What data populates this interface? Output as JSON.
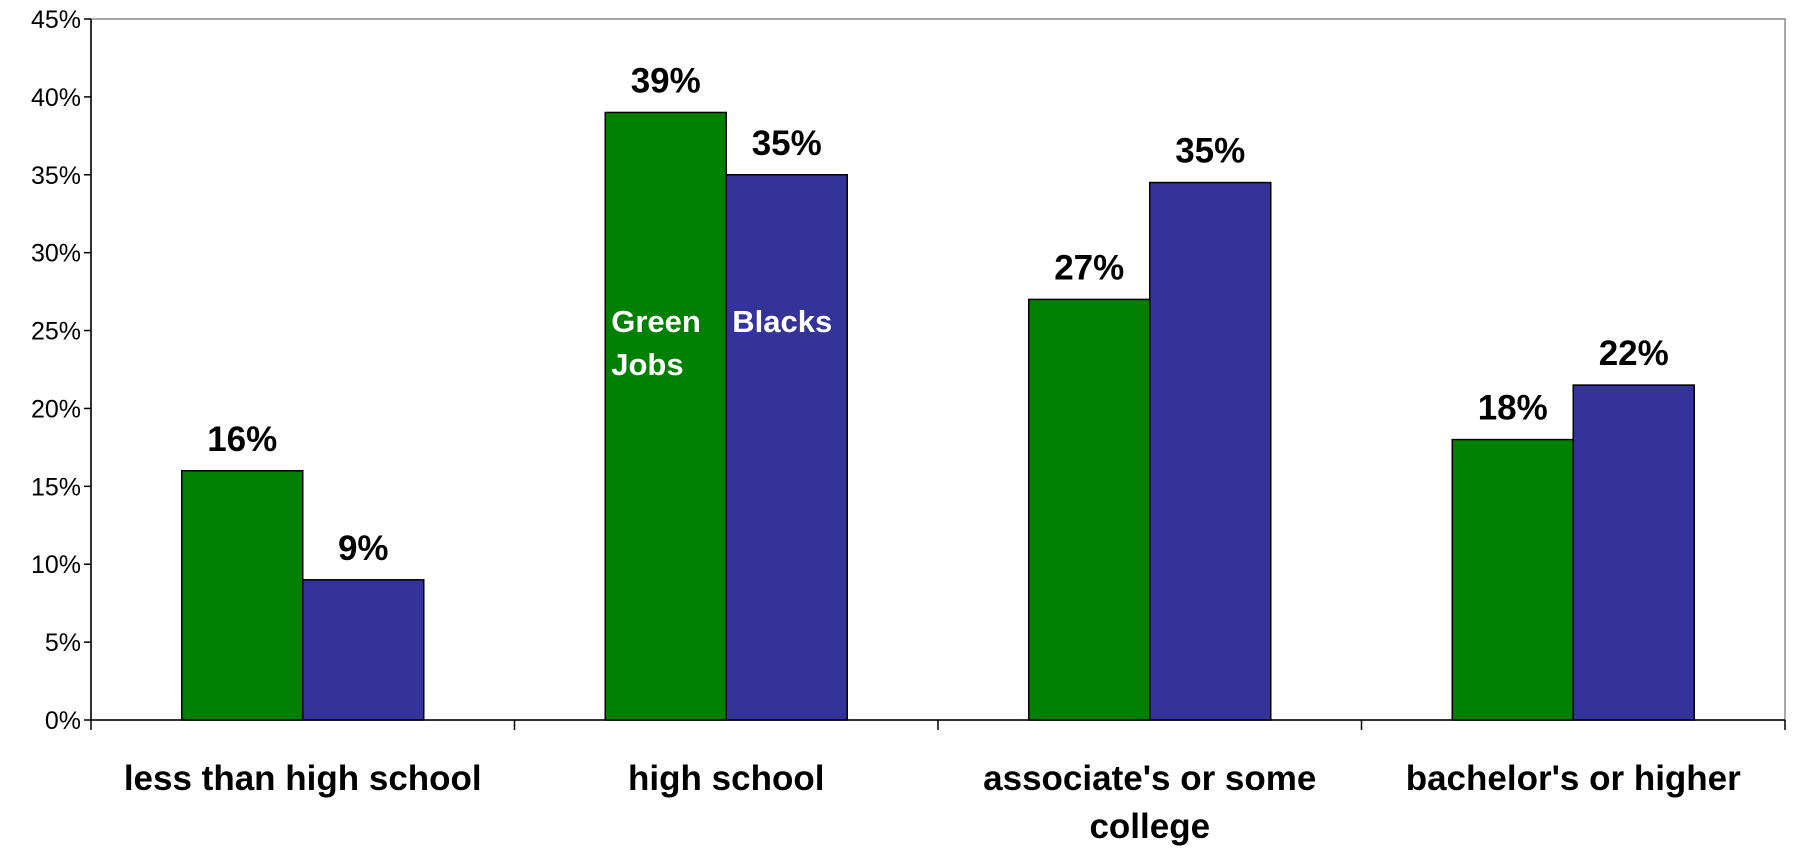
{
  "chart_data": {
    "type": "bar",
    "title": "",
    "xlabel": "",
    "ylabel": "",
    "ylim": [
      0,
      45
    ],
    "ytick_step": 5,
    "ytick_format": "percent",
    "grid": false,
    "legend": "in-bar labels",
    "categories": [
      [
        "less than high school"
      ],
      [
        "high school"
      ],
      [
        "associate's or some",
        "college"
      ],
      [
        "bachelor's or higher"
      ]
    ],
    "series": [
      {
        "name": "Green Jobs",
        "label_lines": [
          "Green",
          "Jobs"
        ],
        "color": "#008000",
        "values": [
          16,
          39,
          27,
          18
        ],
        "value_labels": [
          "16%",
          "39%",
          "27%",
          "18%"
        ]
      },
      {
        "name": "Blacks",
        "label_lines": [
          "Blacks"
        ],
        "color": "#333399",
        "values": [
          9,
          35,
          34.5,
          21.5
        ],
        "value_labels": [
          "9%",
          "35%",
          "35%",
          "22%"
        ]
      }
    ],
    "series_label_category_index": 1
  }
}
